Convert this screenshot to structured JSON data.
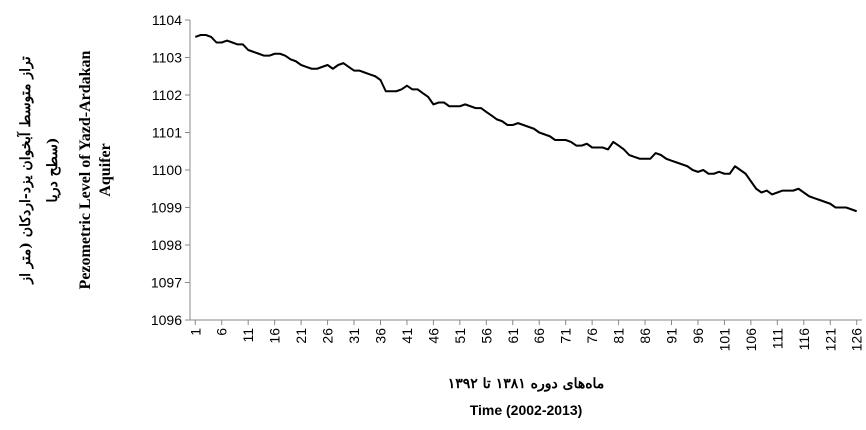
{
  "chart_data": {
    "type": "line",
    "ylabel": {
      "fa": [
        "تراز متوسط آبخوان یزد-اردکان (متر از",
        "سطح دریا)"
      ],
      "en": [
        "Pezometric Level of Yazd-Ardakan",
        "Aquifer"
      ]
    },
    "xlabel": {
      "fa": "ماه‌های دوره ۱۳۸۱ تا ۱۳۹۲",
      "en": "Time (2002-2013)"
    },
    "x": [
      1,
      2,
      3,
      4,
      5,
      6,
      7,
      8,
      9,
      10,
      11,
      12,
      13,
      14,
      15,
      16,
      17,
      18,
      19,
      20,
      21,
      22,
      23,
      24,
      25,
      26,
      27,
      28,
      29,
      30,
      31,
      32,
      33,
      34,
      35,
      36,
      37,
      38,
      39,
      40,
      41,
      42,
      43,
      44,
      45,
      46,
      47,
      48,
      49,
      50,
      51,
      52,
      53,
      54,
      55,
      56,
      57,
      58,
      59,
      60,
      61,
      62,
      63,
      64,
      65,
      66,
      67,
      68,
      69,
      70,
      71,
      72,
      73,
      74,
      75,
      76,
      77,
      78,
      79,
      80,
      81,
      82,
      83,
      84,
      85,
      86,
      87,
      88,
      89,
      90,
      91,
      92,
      93,
      94,
      95,
      96,
      97,
      98,
      99,
      100,
      101,
      102,
      103,
      104,
      105,
      106,
      107,
      108,
      109,
      110,
      111,
      112,
      113,
      114,
      115,
      116,
      117,
      118,
      119,
      120,
      121,
      122,
      123,
      124,
      125,
      126
    ],
    "values": [
      1103.55,
      1103.6,
      1103.6,
      1103.55,
      1103.4,
      1103.4,
      1103.45,
      1103.4,
      1103.35,
      1103.35,
      1103.2,
      1103.15,
      1103.1,
      1103.05,
      1103.05,
      1103.1,
      1103.1,
      1103.05,
      1102.95,
      1102.9,
      1102.8,
      1102.75,
      1102.7,
      1102.7,
      1102.75,
      1102.8,
      1102.7,
      1102.8,
      1102.85,
      1102.75,
      1102.65,
      1102.65,
      1102.6,
      1102.55,
      1102.5,
      1102.4,
      1102.1,
      1102.1,
      1102.1,
      1102.15,
      1102.25,
      1102.15,
      1102.15,
      1102.05,
      1101.95,
      1101.75,
      1101.8,
      1101.8,
      1101.7,
      1101.7,
      1101.7,
      1101.75,
      1101.7,
      1101.65,
      1101.65,
      1101.55,
      1101.45,
      1101.35,
      1101.3,
      1101.2,
      1101.2,
      1101.25,
      1101.2,
      1101.15,
      1101.1,
      1101.0,
      1100.95,
      1100.9,
      1100.8,
      1100.8,
      1100.8,
      1100.75,
      1100.65,
      1100.65,
      1100.7,
      1100.6,
      1100.6,
      1100.6,
      1100.55,
      1100.75,
      1100.65,
      1100.55,
      1100.4,
      1100.35,
      1100.3,
      1100.3,
      1100.3,
      1100.45,
      1100.4,
      1100.3,
      1100.25,
      1100.2,
      1100.15,
      1100.1,
      1100.0,
      1099.95,
      1100.0,
      1099.9,
      1099.9,
      1099.95,
      1099.9,
      1099.9,
      1100.1,
      1100.0,
      1099.9,
      1099.7,
      1099.5,
      1099.4,
      1099.45,
      1099.35,
      1099.4,
      1099.45,
      1099.45,
      1099.45,
      1099.5,
      1099.4,
      1099.3,
      1099.25,
      1099.2,
      1099.15,
      1099.1,
      1099.0,
      1099.0,
      1099.0,
      1098.95,
      1098.9
    ],
    "color": "#000000",
    "xlim": [
      0,
      127
    ],
    "xticks": [
      1,
      6,
      11,
      16,
      21,
      26,
      31,
      36,
      41,
      46,
      51,
      56,
      61,
      66,
      71,
      76,
      81,
      86,
      91,
      96,
      101,
      106,
      111,
      116,
      121,
      126
    ],
    "ylim": [
      1096,
      1104
    ],
    "yticks": [
      1096,
      1097,
      1098,
      1099,
      1100,
      1101,
      1102,
      1103,
      1104
    ],
    "grid": false
  }
}
